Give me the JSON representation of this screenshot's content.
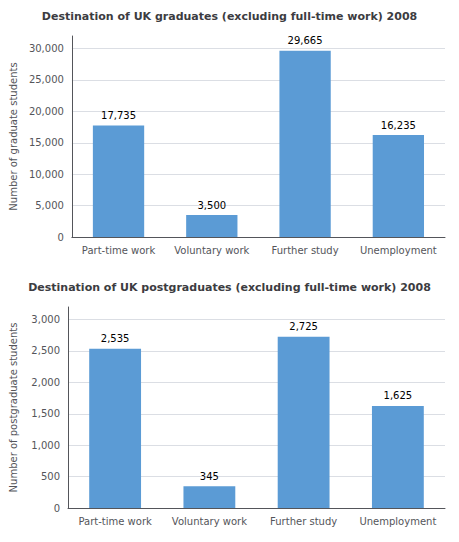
{
  "chart_data": [
    {
      "type": "bar",
      "title": "Destination of UK graduates (excluding full-time work) 2008",
      "categories": [
        "Part-time work",
        "Voluntary work",
        "Further study",
        "Unemployment"
      ],
      "values": [
        17735,
        3500,
        29665,
        16235
      ],
      "value_labels": [
        "17,735",
        "3,500",
        "29,665",
        "16,235"
      ],
      "data_labels": true,
      "color": "#5B9BD5",
      "ylabel": "Number of graduate students",
      "ylim": [
        0,
        32000
      ],
      "yticks": [
        0,
        {
          "value": 5000,
          "label": "5,000"
        },
        {
          "value": 10000,
          "label": "10,000"
        },
        {
          "value": 15000,
          "label": "15,000"
        },
        {
          "value": 20000,
          "label": "20,000"
        },
        {
          "value": 25000,
          "label": "25,000"
        },
        {
          "value": 30000,
          "label": "30,000"
        }
      ],
      "grid": true
    },
    {
      "type": "bar",
      "title": "Destination of UK postgraduates (excluding full-time work) 2008",
      "categories": [
        "Part-time work",
        "Voluntary work",
        "Further study",
        "Unemployment"
      ],
      "values": [
        2535,
        345,
        2725,
        1625
      ],
      "value_labels": [
        "2,535",
        "345",
        "2,725",
        "1,625"
      ],
      "data_labels": true,
      "color": "#5B9BD5",
      "ylabel": "Number of postgraduate students",
      "ylim": [
        0,
        3200
      ],
      "yticks": [
        0,
        500,
        {
          "value": 1000,
          "label": "1,000"
        },
        {
          "value": 1500,
          "label": "1,500"
        },
        {
          "value": 2000,
          "label": "2,000"
        },
        {
          "value": 2500,
          "label": "2,500"
        },
        {
          "value": 3000,
          "label": "3,000"
        }
      ],
      "grid": true
    }
  ]
}
